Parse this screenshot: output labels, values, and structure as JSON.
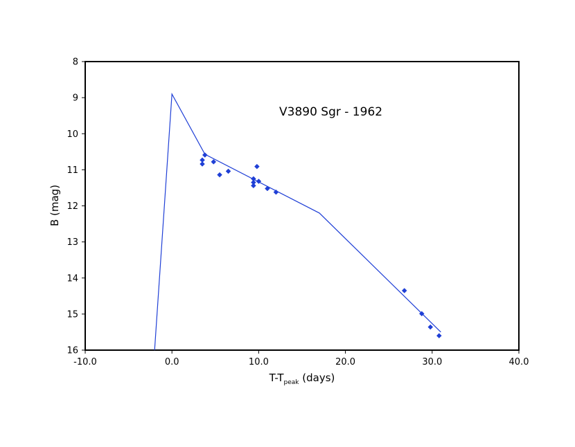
{
  "chart_data": {
    "type": "scatter",
    "title": "",
    "annotation": "V3890 Sgr - 1962",
    "xlabel": {
      "main": "T-T",
      "subscript": "peak",
      "suffix": " (days)"
    },
    "ylabel": "B (mag)",
    "xlim": [
      -10.0,
      40.0
    ],
    "ylim": [
      8,
      16
    ],
    "y_inverted": true,
    "grid": false,
    "x_ticks": [
      -10.0,
      0.0,
      10.0,
      20.0,
      30.0,
      40.0
    ],
    "x_tick_labels": [
      "-10.0",
      "0.0",
      "10.0",
      "20.0",
      "30.0",
      "40.0"
    ],
    "y_ticks": [
      8,
      9,
      10,
      11,
      12,
      13,
      14,
      15,
      16
    ],
    "y_tick_labels": [
      "8",
      "9",
      "10",
      "11",
      "12",
      "13",
      "14",
      "15",
      "16"
    ],
    "series": [
      {
        "kind": "markers",
        "marker": "diamond",
        "color": "#1f3fd6",
        "points": [
          {
            "x": 3.5,
            "y": 10.73
          },
          {
            "x": 3.5,
            "y": 10.84
          },
          {
            "x": 3.8,
            "y": 10.59
          },
          {
            "x": 4.8,
            "y": 10.78
          },
          {
            "x": 5.5,
            "y": 11.14
          },
          {
            "x": 6.5,
            "y": 11.04
          },
          {
            "x": 9.4,
            "y": 11.25
          },
          {
            "x": 9.4,
            "y": 11.35
          },
          {
            "x": 9.4,
            "y": 11.44
          },
          {
            "x": 9.8,
            "y": 10.91
          },
          {
            "x": 10.0,
            "y": 11.32
          },
          {
            "x": 11.0,
            "y": 11.52
          },
          {
            "x": 12.0,
            "y": 11.62
          },
          {
            "x": 26.8,
            "y": 14.35
          },
          {
            "x": 28.8,
            "y": 14.99
          },
          {
            "x": 29.8,
            "y": 15.36
          },
          {
            "x": 30.8,
            "y": 15.6
          }
        ]
      },
      {
        "kind": "line",
        "color": "#1f3fd6",
        "points": [
          {
            "x": -2.0,
            "y": 16.0
          },
          {
            "x": 0.0,
            "y": 8.9
          },
          {
            "x": 3.8,
            "y": 10.57
          },
          {
            "x": 17.0,
            "y": 12.2
          },
          {
            "x": 31.0,
            "y": 15.5
          }
        ]
      }
    ]
  }
}
